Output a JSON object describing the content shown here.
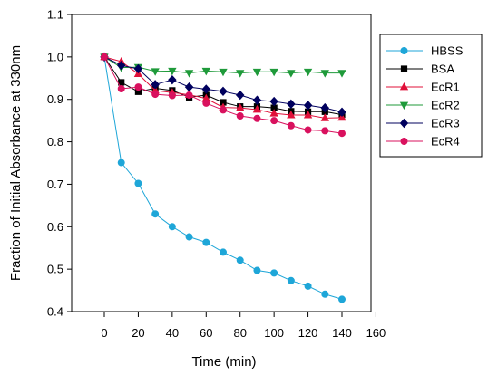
{
  "chart_data": {
    "type": "line",
    "title": "",
    "xlabel": "Time (min)",
    "ylabel": "Fraction of Initial Absorbance at 330nm",
    "xlim": [
      -20,
      160
    ],
    "ylim": [
      0.4,
      1.1
    ],
    "xticks": [
      0,
      20,
      40,
      60,
      80,
      100,
      120,
      140,
      160
    ],
    "yticks": [
      0.4,
      0.5,
      0.6,
      0.7,
      0.8,
      0.9,
      1.0,
      1.1
    ],
    "ytick_labels": [
      "0.4",
      "0.5",
      "0.6",
      "0.7",
      "0.8",
      "0.9",
      "1.0",
      "1.1"
    ],
    "grid": false,
    "legend_position": "right",
    "x": [
      0,
      10,
      20,
      30,
      40,
      50,
      60,
      70,
      80,
      90,
      100,
      110,
      120,
      130,
      140
    ],
    "series": [
      {
        "name": "HBSS",
        "color": "#1ea6d8",
        "marker": "circle",
        "values": [
          1.0,
          0.751,
          0.702,
          0.63,
          0.6,
          0.576,
          0.563,
          0.54,
          0.521,
          0.497,
          0.491,
          0.473,
          0.46,
          0.441,
          0.429
        ]
      },
      {
        "name": "BSA",
        "color": "#000000",
        "marker": "square",
        "values": [
          1.0,
          0.94,
          0.918,
          0.926,
          0.921,
          0.905,
          0.91,
          0.893,
          0.883,
          0.883,
          0.88,
          0.872,
          0.871,
          0.871,
          0.864
        ]
      },
      {
        "name": "EcR1",
        "color": "#e0103a",
        "marker": "triangle-up",
        "values": [
          1.0,
          0.989,
          0.96,
          0.921,
          0.916,
          0.911,
          0.902,
          0.881,
          0.88,
          0.876,
          0.867,
          0.863,
          0.863,
          0.856,
          0.857
        ]
      },
      {
        "name": "EcR2",
        "color": "#1f9a3a",
        "marker": "triangle-down",
        "values": [
          1.0,
          0.975,
          0.976,
          0.966,
          0.967,
          0.962,
          0.967,
          0.965,
          0.962,
          0.965,
          0.965,
          0.962,
          0.965,
          0.962,
          0.962
        ]
      },
      {
        "name": "EcR3",
        "color": "#00005e",
        "marker": "diamond",
        "values": [
          1.0,
          0.98,
          0.972,
          0.935,
          0.946,
          0.929,
          0.924,
          0.919,
          0.91,
          0.898,
          0.895,
          0.889,
          0.886,
          0.88,
          0.87
        ]
      },
      {
        "name": "EcR4",
        "color": "#d9115e",
        "marker": "circle",
        "values": [
          1.0,
          0.925,
          0.929,
          0.912,
          0.909,
          0.91,
          0.891,
          0.875,
          0.861,
          0.855,
          0.85,
          0.838,
          0.828,
          0.826,
          0.82
        ]
      }
    ]
  }
}
